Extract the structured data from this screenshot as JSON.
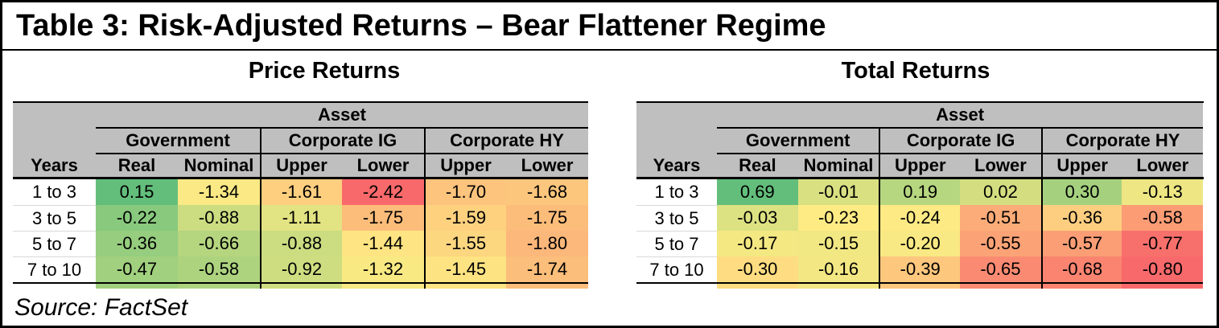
{
  "title": "Table 3: Risk-Adjusted Returns – Bear Flattener Regime",
  "source": "Source: FactSet",
  "colors": {
    "header_bg": "#bfbfbf",
    "border": "#000000",
    "row_separator": "#d9d9d9",
    "scale_min_red": "#f8696b",
    "scale_mid_yellow": "#ffeb84",
    "scale_max_green": "#63be7b"
  },
  "chart_data": [
    {
      "type": "heatmap",
      "title": "Price Returns",
      "col_group_header": "Asset",
      "groups": [
        "Government",
        "Corporate IG",
        "Corporate HY"
      ],
      "columns": [
        "Real",
        "Nominal",
        "Upper",
        "Lower",
        "Upper",
        "Lower"
      ],
      "row_header": "Years",
      "rows": [
        "1 to 3",
        "3 to 5",
        "5 to 7",
        "7 to 10"
      ],
      "values": [
        [
          0.15,
          -1.34,
          -1.61,
          -2.42,
          -1.7,
          -1.68
        ],
        [
          -0.22,
          -0.88,
          -1.11,
          -1.75,
          -1.59,
          -1.75
        ],
        [
          -0.36,
          -0.66,
          -0.88,
          -1.44,
          -1.55,
          -1.8
        ],
        [
          -0.47,
          -0.58,
          -0.92,
          -1.32,
          -1.45,
          -1.74
        ]
      ],
      "cell_colors": [
        [
          "#63be7b",
          "#fae984",
          "#fdcf7f",
          "#f8696b",
          "#fdc47d",
          "#fdc67d"
        ],
        [
          "#88c97d",
          "#cbdc81",
          "#e2e382",
          "#fcbd7b",
          "#fed17f",
          "#fcbd7b"
        ],
        [
          "#96cd7e",
          "#b5d57f",
          "#cbdc81",
          "#fee482",
          "#fdd680",
          "#fcb77a"
        ],
        [
          "#a1d07e",
          "#add37f",
          "#cfdd81",
          "#f8e983",
          "#fee382",
          "#fcbe7b"
        ]
      ]
    },
    {
      "type": "heatmap",
      "title": "Total Returns",
      "col_group_header": "Asset",
      "groups": [
        "Government",
        "Corporate IG",
        "Corporate HY"
      ],
      "columns": [
        "Real",
        "Nominal",
        "Upper",
        "Lower",
        "Upper",
        "Lower"
      ],
      "row_header": "Years",
      "rows": [
        "1 to 3",
        "3 to 5",
        "5 to 7",
        "7 to 10"
      ],
      "values": [
        [
          0.69,
          -0.01,
          0.19,
          0.02,
          0.3,
          -0.13
        ],
        [
          -0.03,
          -0.23,
          -0.24,
          -0.51,
          -0.36,
          -0.58
        ],
        [
          -0.17,
          -0.15,
          -0.2,
          -0.55,
          -0.57,
          -0.77
        ],
        [
          -0.3,
          -0.16,
          -0.39,
          -0.65,
          -0.68,
          -0.8
        ]
      ],
      "cell_colors": [
        [
          "#63be7b",
          "#d9e082",
          "#b7d680",
          "#d4de81",
          "#a5d17f",
          "#ede683"
        ],
        [
          "#dce182",
          "#feeb84",
          "#feea84",
          "#fcac78",
          "#fdce7f",
          "#fb9c75"
        ],
        [
          "#f4e883",
          "#f1e783",
          "#f9e984",
          "#fba376",
          "#fb9e75",
          "#f8706c"
        ],
        [
          "#fedc81",
          "#f2e783",
          "#fdc77d",
          "#fa8b72",
          "#fa8470",
          "#f8696b"
        ]
      ]
    }
  ]
}
